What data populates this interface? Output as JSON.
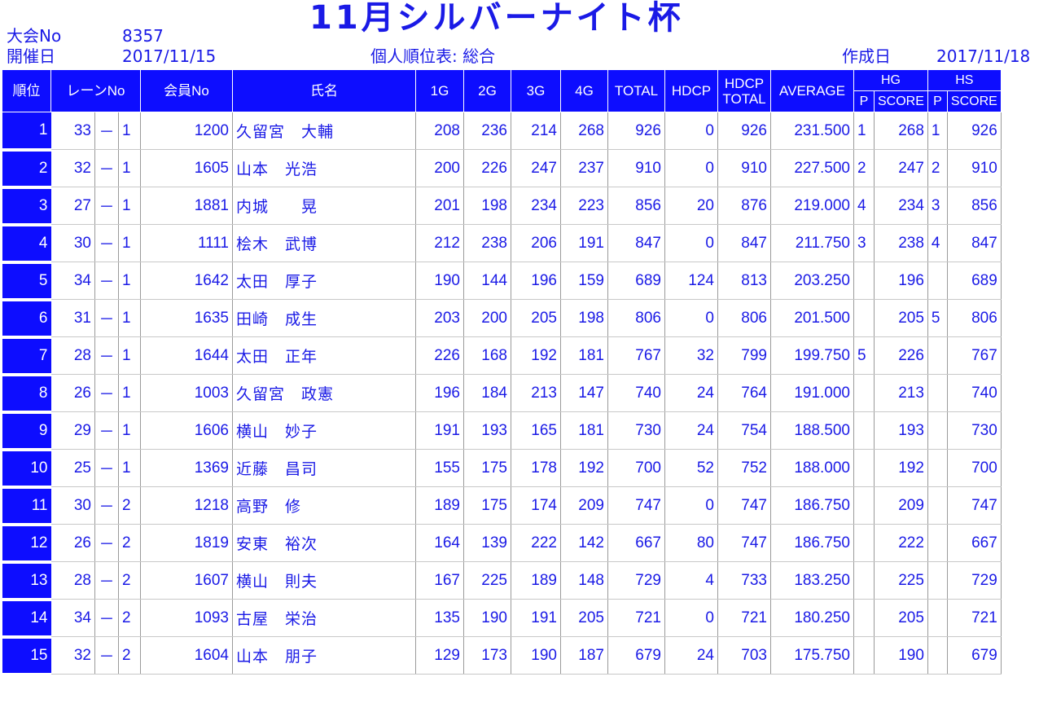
{
  "header": {
    "title": "11月シルバーナイト杯",
    "tournament_no_label": "大会No",
    "tournament_no": "8357",
    "held_date_label": "開催日",
    "held_date": "2017/11/15",
    "report_type": "個人順位表: 総合",
    "created_label": "作成日",
    "created_date": "2017/11/18"
  },
  "columns": {
    "rank": "順位",
    "lane": "レーンNo",
    "member": "会員No",
    "name": "氏名",
    "g1": "1G",
    "g2": "2G",
    "g3": "3G",
    "g4": "4G",
    "total": "TOTAL",
    "hdcp": "HDCP",
    "hdcp_total_1": "HDCP",
    "hdcp_total_2": "TOTAL",
    "average": "AVERAGE",
    "hg": "HG",
    "hs": "HS",
    "p": "P",
    "score": "SCORE"
  },
  "rows": [
    {
      "rank": "1",
      "lane_a": "33",
      "dash": "－",
      "lane_b": "1",
      "member": "1200",
      "name": "久留宮　大輔",
      "g1": "208",
      "g2": "236",
      "g3": "214",
      "g4": "268",
      "total": "926",
      "hdcp": "0",
      "hdcp_total": "926",
      "average": "231.500",
      "hg_p": "1",
      "hg_score": "268",
      "hs_p": "1",
      "hs_score": "926"
    },
    {
      "rank": "2",
      "lane_a": "32",
      "dash": "－",
      "lane_b": "1",
      "member": "1605",
      "name": "山本　光浩",
      "g1": "200",
      "g2": "226",
      "g3": "247",
      "g4": "237",
      "total": "910",
      "hdcp": "0",
      "hdcp_total": "910",
      "average": "227.500",
      "hg_p": "2",
      "hg_score": "247",
      "hs_p": "2",
      "hs_score": "910"
    },
    {
      "rank": "3",
      "lane_a": "27",
      "dash": "－",
      "lane_b": "1",
      "member": "1881",
      "name": "内城　　晃",
      "g1": "201",
      "g2": "198",
      "g3": "234",
      "g4": "223",
      "total": "856",
      "hdcp": "20",
      "hdcp_total": "876",
      "average": "219.000",
      "hg_p": "4",
      "hg_score": "234",
      "hs_p": "3",
      "hs_score": "856"
    },
    {
      "rank": "4",
      "lane_a": "30",
      "dash": "－",
      "lane_b": "1",
      "member": "1111",
      "name": "桧木　武博",
      "g1": "212",
      "g2": "238",
      "g3": "206",
      "g4": "191",
      "total": "847",
      "hdcp": "0",
      "hdcp_total": "847",
      "average": "211.750",
      "hg_p": "3",
      "hg_score": "238",
      "hs_p": "4",
      "hs_score": "847"
    },
    {
      "rank": "5",
      "lane_a": "34",
      "dash": "－",
      "lane_b": "1",
      "member": "1642",
      "name": "太田　厚子",
      "g1": "190",
      "g2": "144",
      "g3": "196",
      "g4": "159",
      "total": "689",
      "hdcp": "124",
      "hdcp_total": "813",
      "average": "203.250",
      "hg_p": "",
      "hg_score": "196",
      "hs_p": "",
      "hs_score": "689"
    },
    {
      "rank": "6",
      "lane_a": "31",
      "dash": "－",
      "lane_b": "1",
      "member": "1635",
      "name": "田崎　成生",
      "g1": "203",
      "g2": "200",
      "g3": "205",
      "g4": "198",
      "total": "806",
      "hdcp": "0",
      "hdcp_total": "806",
      "average": "201.500",
      "hg_p": "",
      "hg_score": "205",
      "hs_p": "5",
      "hs_score": "806"
    },
    {
      "rank": "7",
      "lane_a": "28",
      "dash": "－",
      "lane_b": "1",
      "member": "1644",
      "name": "太田　正年",
      "g1": "226",
      "g2": "168",
      "g3": "192",
      "g4": "181",
      "total": "767",
      "hdcp": "32",
      "hdcp_total": "799",
      "average": "199.750",
      "hg_p": "5",
      "hg_score": "226",
      "hs_p": "",
      "hs_score": "767"
    },
    {
      "rank": "8",
      "lane_a": "26",
      "dash": "－",
      "lane_b": "1",
      "member": "1003",
      "name": "久留宮　政憲",
      "g1": "196",
      "g2": "184",
      "g3": "213",
      "g4": "147",
      "total": "740",
      "hdcp": "24",
      "hdcp_total": "764",
      "average": "191.000",
      "hg_p": "",
      "hg_score": "213",
      "hs_p": "",
      "hs_score": "740"
    },
    {
      "rank": "9",
      "lane_a": "29",
      "dash": "－",
      "lane_b": "1",
      "member": "1606",
      "name": "横山　妙子",
      "g1": "191",
      "g2": "193",
      "g3": "165",
      "g4": "181",
      "total": "730",
      "hdcp": "24",
      "hdcp_total": "754",
      "average": "188.500",
      "hg_p": "",
      "hg_score": "193",
      "hs_p": "",
      "hs_score": "730"
    },
    {
      "rank": "10",
      "lane_a": "25",
      "dash": "－",
      "lane_b": "1",
      "member": "1369",
      "name": "近藤　昌司",
      "g1": "155",
      "g2": "175",
      "g3": "178",
      "g4": "192",
      "total": "700",
      "hdcp": "52",
      "hdcp_total": "752",
      "average": "188.000",
      "hg_p": "",
      "hg_score": "192",
      "hs_p": "",
      "hs_score": "700"
    },
    {
      "rank": "11",
      "lane_a": "30",
      "dash": "－",
      "lane_b": "2",
      "member": "1218",
      "name": "高野　修",
      "g1": "189",
      "g2": "175",
      "g3": "174",
      "g4": "209",
      "total": "747",
      "hdcp": "0",
      "hdcp_total": "747",
      "average": "186.750",
      "hg_p": "",
      "hg_score": "209",
      "hs_p": "",
      "hs_score": "747"
    },
    {
      "rank": "12",
      "lane_a": "26",
      "dash": "－",
      "lane_b": "2",
      "member": "1819",
      "name": "安東　裕次",
      "g1": "164",
      "g2": "139",
      "g3": "222",
      "g4": "142",
      "total": "667",
      "hdcp": "80",
      "hdcp_total": "747",
      "average": "186.750",
      "hg_p": "",
      "hg_score": "222",
      "hs_p": "",
      "hs_score": "667"
    },
    {
      "rank": "13",
      "lane_a": "28",
      "dash": "－",
      "lane_b": "2",
      "member": "1607",
      "name": "横山　則夫",
      "g1": "167",
      "g2": "225",
      "g3": "189",
      "g4": "148",
      "total": "729",
      "hdcp": "4",
      "hdcp_total": "733",
      "average": "183.250",
      "hg_p": "",
      "hg_score": "225",
      "hs_p": "",
      "hs_score": "729"
    },
    {
      "rank": "14",
      "lane_a": "34",
      "dash": "－",
      "lane_b": "2",
      "member": "1093",
      "name": "古屋　栄治",
      "g1": "135",
      "g2": "190",
      "g3": "191",
      "g4": "205",
      "total": "721",
      "hdcp": "0",
      "hdcp_total": "721",
      "average": "180.250",
      "hg_p": "",
      "hg_score": "205",
      "hs_p": "",
      "hs_score": "721"
    },
    {
      "rank": "15",
      "lane_a": "32",
      "dash": "－",
      "lane_b": "2",
      "member": "1604",
      "name": "山本　朋子",
      "g1": "129",
      "g2": "173",
      "g3": "190",
      "g4": "187",
      "total": "679",
      "hdcp": "24",
      "hdcp_total": "703",
      "average": "175.750",
      "hg_p": "",
      "hg_score": "190",
      "hs_p": "",
      "hs_score": "679"
    }
  ]
}
